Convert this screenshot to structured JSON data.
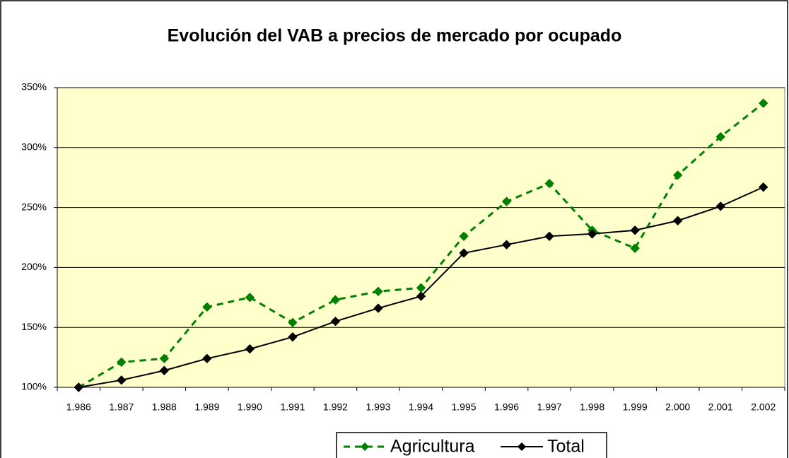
{
  "chart_data": {
    "type": "line",
    "title": "Evolución del VAB a precios de mercado por ocupado",
    "categories": [
      "1.986",
      "1.987",
      "1.988",
      "1.989",
      "1.990",
      "1.991",
      "1.992",
      "1.993",
      "1.994",
      "1.995",
      "1.996",
      "1.997",
      "1.998",
      "1.999",
      "2.000",
      "2.001",
      "2.002"
    ],
    "series": [
      {
        "name": "Agricultura",
        "color": "#008000",
        "dashed": true,
        "values": [
          100,
          121,
          124,
          167,
          175,
          154,
          173,
          180,
          183,
          226,
          255,
          270,
          231,
          216,
          277,
          309,
          337
        ]
      },
      {
        "name": "Total",
        "color": "#000000",
        "dashed": false,
        "values": [
          100,
          106,
          114,
          124,
          132,
          142,
          155,
          166,
          176,
          212,
          219,
          226,
          228,
          231,
          239,
          251,
          267
        ]
      }
    ],
    "ylim": [
      100,
      350
    ],
    "yticks": [
      {
        "value": 100,
        "label": "100%"
      },
      {
        "value": 150,
        "label": "150%"
      },
      {
        "value": 200,
        "label": "200%"
      },
      {
        "value": 250,
        "label": "250%"
      },
      {
        "value": 300,
        "label": "300%"
      },
      {
        "value": 350,
        "label": "350%"
      }
    ],
    "grid": true,
    "legend": "bottom",
    "plot_background": "#ffffcc"
  }
}
